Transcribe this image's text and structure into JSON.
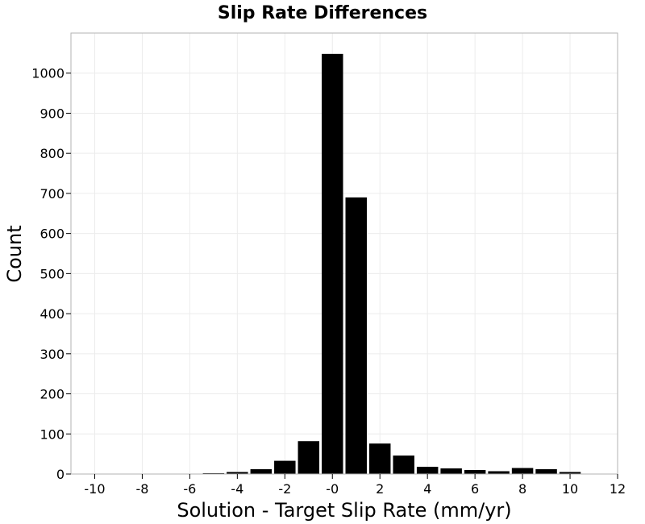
{
  "chart_data": {
    "type": "bar",
    "title": "Slip Rate Differences",
    "xlabel": "Solution - Target Slip Rate (mm/yr)",
    "ylabel": "Count",
    "xlim": [
      -11,
      12
    ],
    "ylim": [
      0,
      1100
    ],
    "xticks": [
      -10,
      -8,
      -6,
      -4,
      -2,
      0,
      2,
      4,
      6,
      8,
      10,
      12
    ],
    "xtick_labels": [
      "-10",
      "-8",
      "-6",
      "-4",
      "-2",
      "-0",
      "2",
      "4",
      "6",
      "8",
      "10",
      "12"
    ],
    "yticks": [
      0,
      100,
      200,
      300,
      400,
      500,
      600,
      700,
      800,
      900,
      1000
    ],
    "grid": true,
    "bin_width": 1,
    "bar_color": "#000000",
    "bins": [
      {
        "x": -10,
        "count": 0
      },
      {
        "x": -9,
        "count": 0
      },
      {
        "x": -8,
        "count": 0
      },
      {
        "x": -7,
        "count": 0
      },
      {
        "x": -6,
        "count": 0
      },
      {
        "x": -5,
        "count": 2
      },
      {
        "x": -4,
        "count": 5
      },
      {
        "x": -3,
        "count": 12
      },
      {
        "x": -2,
        "count": 33
      },
      {
        "x": -1,
        "count": 82
      },
      {
        "x": 0,
        "count": 1048
      },
      {
        "x": 1,
        "count": 690
      },
      {
        "x": 2,
        "count": 76
      },
      {
        "x": 3,
        "count": 46
      },
      {
        "x": 4,
        "count": 18
      },
      {
        "x": 5,
        "count": 14
      },
      {
        "x": 6,
        "count": 10
      },
      {
        "x": 7,
        "count": 7
      },
      {
        "x": 8,
        "count": 15
      },
      {
        "x": 9,
        "count": 12
      },
      {
        "x": 10,
        "count": 5
      },
      {
        "x": 11,
        "count": 1
      }
    ]
  }
}
